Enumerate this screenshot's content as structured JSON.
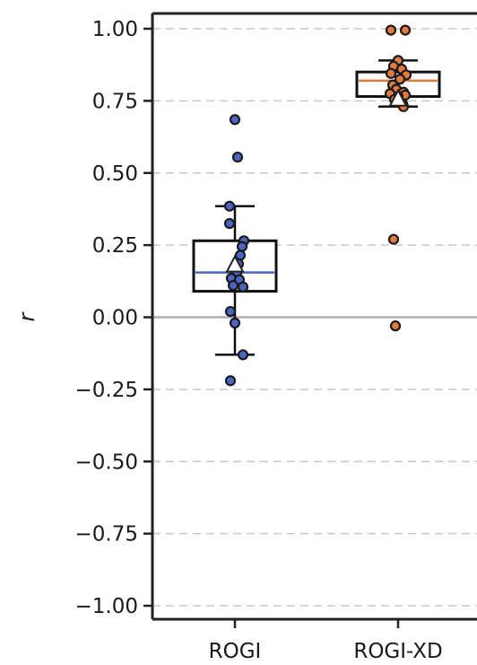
{
  "chart_data": {
    "type": "box",
    "title": "",
    "xlabel": "",
    "ylabel": "r",
    "ylim": [
      -1.0,
      1.0
    ],
    "yticks": [
      1.0,
      0.75,
      0.5,
      0.25,
      0.0,
      -0.25,
      -0.5,
      -0.75,
      -1.0
    ],
    "ytick_labels": [
      "1.00",
      "0.75",
      "0.50",
      "0.25",
      "0.00",
      "−0.25",
      "−0.50",
      "−0.75",
      "−1.00"
    ],
    "grid": "horizontal-dashed",
    "zero_line": 0.0,
    "categories": [
      "ROGI",
      "ROGI-XD"
    ],
    "series": [
      {
        "category": "ROGI",
        "color": "#4a66c4",
        "median_color": "#4a66c4",
        "whisker_low": -0.13,
        "q1": 0.09,
        "median": 0.155,
        "q3": 0.265,
        "whisker_high": 0.385,
        "mean": 0.18,
        "points": [
          {
            "x": 0.0,
            "y": 0.685
          },
          {
            "x": 0.03,
            "y": 0.555
          },
          {
            "x": -0.06,
            "y": 0.385
          },
          {
            "x": -0.06,
            "y": 0.325
          },
          {
            "x": 0.1,
            "y": 0.265
          },
          {
            "x": 0.08,
            "y": 0.245
          },
          {
            "x": 0.06,
            "y": 0.215
          },
          {
            "x": 0.04,
            "y": 0.185
          },
          {
            "x": 0.02,
            "y": 0.155
          },
          {
            "x": -0.04,
            "y": 0.135
          },
          {
            "x": 0.05,
            "y": 0.13
          },
          {
            "x": -0.02,
            "y": 0.11
          },
          {
            "x": 0.09,
            "y": 0.105
          },
          {
            "x": -0.05,
            "y": 0.02
          },
          {
            "x": 0.0,
            "y": -0.02
          },
          {
            "x": 0.09,
            "y": -0.13
          },
          {
            "x": -0.05,
            "y": -0.22
          }
        ]
      },
      {
        "category": "ROGI-XD",
        "color": "#e07b39",
        "median_color": "#e07b39",
        "whisker_low": 0.73,
        "q1": 0.765,
        "median": 0.82,
        "q3": 0.85,
        "whisker_high": 0.89,
        "mean": 0.755,
        "points": [
          {
            "x": -0.08,
            "y": 0.995
          },
          {
            "x": 0.08,
            "y": 0.995
          },
          {
            "x": 0.0,
            "y": 0.89
          },
          {
            "x": -0.05,
            "y": 0.87
          },
          {
            "x": 0.04,
            "y": 0.86
          },
          {
            "x": -0.08,
            "y": 0.845
          },
          {
            "x": 0.09,
            "y": 0.84
          },
          {
            "x": 0.02,
            "y": 0.825
          },
          {
            "x": -0.06,
            "y": 0.805
          },
          {
            "x": -0.02,
            "y": 0.79
          },
          {
            "x": 0.06,
            "y": 0.78
          },
          {
            "x": -0.09,
            "y": 0.775
          },
          {
            "x": 0.08,
            "y": 0.77
          },
          {
            "x": 0.0,
            "y": 0.765
          },
          {
            "x": -0.04,
            "y": 0.755
          },
          {
            "x": 0.05,
            "y": 0.74
          },
          {
            "x": 0.06,
            "y": 0.73
          },
          {
            "x": -0.05,
            "y": 0.27
          },
          {
            "x": -0.03,
            "y": -0.03
          }
        ]
      }
    ]
  }
}
